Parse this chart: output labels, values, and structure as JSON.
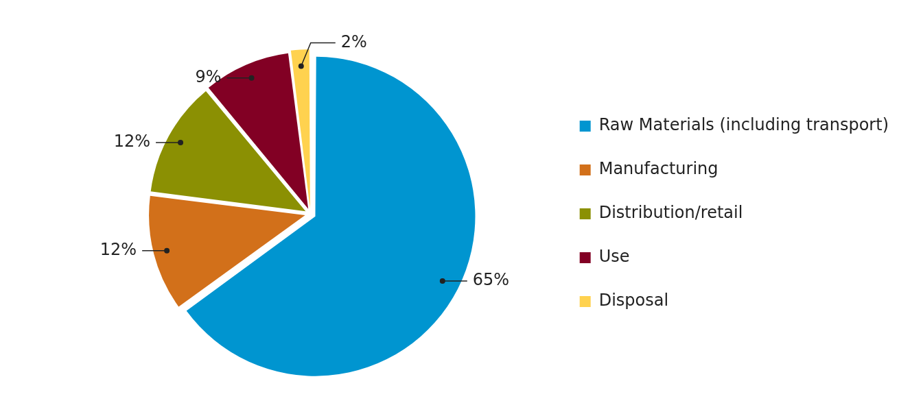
{
  "chart_data": {
    "type": "pie",
    "categories": [
      "Raw Materials (including transport)",
      "Manufacturing",
      "Distribution/retail",
      "Use",
      "Disposal"
    ],
    "values": [
      65,
      12,
      12,
      9,
      2
    ],
    "colors": [
      "#0095d0",
      "#d2701a",
      "#8b9003",
      "#820024",
      "#ffd24f"
    ],
    "value_labels": [
      "65%",
      "12%",
      "12%",
      "9%",
      "2%"
    ],
    "legend": "right"
  }
}
